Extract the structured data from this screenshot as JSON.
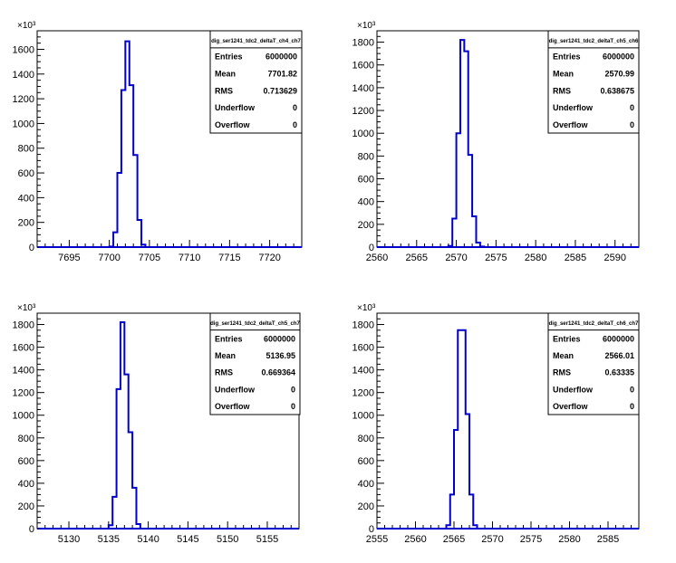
{
  "colors": {
    "histogram": "#0000cc",
    "axis": "#000000",
    "background": "#ffffff"
  },
  "chart_data": [
    {
      "type": "histogram",
      "title": "dig_ser1241_tdc2_deltaT_ch4_ch7",
      "xlim": [
        7691,
        7724
      ],
      "ylim": [
        0,
        1750
      ],
      "y_exponent_label": "×10³",
      "x_ticks": [
        7695,
        7700,
        7705,
        7710,
        7715,
        7720
      ],
      "y_ticks": [
        0,
        200,
        400,
        600,
        800,
        1000,
        1200,
        1400,
        1600
      ],
      "bin_width": 0.5,
      "bins": [
        {
          "x": 7700.0,
          "y": 5
        },
        {
          "x": 7700.5,
          "y": 120
        },
        {
          "x": 7701.0,
          "y": 600
        },
        {
          "x": 7701.5,
          "y": 1270
        },
        {
          "x": 7702.0,
          "y": 1665
        },
        {
          "x": 7702.5,
          "y": 1310
        },
        {
          "x": 7703.0,
          "y": 745
        },
        {
          "x": 7703.5,
          "y": 220
        },
        {
          "x": 7704.0,
          "y": 20
        }
      ],
      "stats": {
        "name": "dig_ser1241_tdc2_deltaT_ch4_ch7",
        "rows": [
          {
            "label": "Entries",
            "value": "6000000"
          },
          {
            "label": "Mean",
            "value": "7701.82"
          },
          {
            "label": "RMS",
            "value": "0.713629"
          },
          {
            "label": "Underflow",
            "value": "0"
          },
          {
            "label": "Overflow",
            "value": "0"
          }
        ]
      }
    },
    {
      "type": "histogram",
      "title": "dig_ser1241_tdc2_deltaT_ch5_ch6",
      "xlim": [
        2560,
        2593
      ],
      "ylim": [
        0,
        1900
      ],
      "y_exponent_label": "×10³",
      "x_ticks": [
        2560,
        2565,
        2570,
        2575,
        2580,
        2585,
        2590
      ],
      "y_ticks": [
        0,
        200,
        400,
        600,
        800,
        1000,
        1200,
        1400,
        1600,
        1800
      ],
      "bin_width": 0.5,
      "bins": [
        {
          "x": 2569.0,
          "y": 10
        },
        {
          "x": 2569.5,
          "y": 250
        },
        {
          "x": 2570.0,
          "y": 1000
        },
        {
          "x": 2570.5,
          "y": 1820
        },
        {
          "x": 2571.0,
          "y": 1720
        },
        {
          "x": 2571.5,
          "y": 810
        },
        {
          "x": 2572.0,
          "y": 270
        },
        {
          "x": 2572.5,
          "y": 40
        },
        {
          "x": 2573.0,
          "y": 5
        }
      ],
      "stats": {
        "name": "dig_ser1241_tdc2_deltaT_ch5_ch6",
        "rows": [
          {
            "label": "Entries",
            "value": "6000000"
          },
          {
            "label": "Mean",
            "value": "2570.99"
          },
          {
            "label": "RMS",
            "value": "0.638675"
          },
          {
            "label": "Underflow",
            "value": "0"
          },
          {
            "label": "Overflow",
            "value": "0"
          }
        ]
      }
    },
    {
      "type": "histogram",
      "title": "dig_ser1241_tdc2_deltaT_ch5_ch7",
      "xlim": [
        5126,
        5159
      ],
      "ylim": [
        0,
        1900
      ],
      "y_exponent_label": "×10³",
      "x_ticks": [
        5130,
        5135,
        5140,
        5145,
        5150,
        5155
      ],
      "y_ticks": [
        0,
        200,
        400,
        600,
        800,
        1000,
        1200,
        1400,
        1600,
        1800
      ],
      "bin_width": 0.5,
      "bins": [
        {
          "x": 5135.0,
          "y": 30
        },
        {
          "x": 5135.5,
          "y": 280
        },
        {
          "x": 5136.0,
          "y": 1230
        },
        {
          "x": 5136.5,
          "y": 1820
        },
        {
          "x": 5137.0,
          "y": 1360
        },
        {
          "x": 5137.5,
          "y": 850
        },
        {
          "x": 5138.0,
          "y": 360
        },
        {
          "x": 5138.5,
          "y": 40
        }
      ],
      "stats": {
        "name": "dig_ser1241_tdc2_deltaT_ch5_ch7",
        "rows": [
          {
            "label": "Entries",
            "value": "6000000"
          },
          {
            "label": "Mean",
            "value": "5136.95"
          },
          {
            "label": "RMS",
            "value": "0.669364"
          },
          {
            "label": "Underflow",
            "value": "0"
          },
          {
            "label": "Overflow",
            "value": "0"
          }
        ]
      }
    },
    {
      "type": "histogram",
      "title": "dig_ser1241_tdc2_deltaT_ch6_ch7",
      "xlim": [
        2555,
        2589
      ],
      "ylim": [
        0,
        1900
      ],
      "y_exponent_label": "×10³",
      "x_ticks": [
        2555,
        2560,
        2565,
        2570,
        2575,
        2580,
        2585
      ],
      "y_ticks": [
        0,
        200,
        400,
        600,
        800,
        1000,
        1200,
        1400,
        1600,
        1800
      ],
      "bin_width": 0.5,
      "bins": [
        {
          "x": 2564.0,
          "y": 30
        },
        {
          "x": 2564.5,
          "y": 300
        },
        {
          "x": 2565.0,
          "y": 870
        },
        {
          "x": 2565.5,
          "y": 1750
        },
        {
          "x": 2566.0,
          "y": 1750
        },
        {
          "x": 2566.5,
          "y": 1010
        },
        {
          "x": 2567.0,
          "y": 300
        },
        {
          "x": 2567.5,
          "y": 30
        }
      ],
      "stats": {
        "name": "dig_ser1241_tdc2_deltaT_ch6_ch7",
        "rows": [
          {
            "label": "Entries",
            "value": "6000000"
          },
          {
            "label": "Mean",
            "value": "2566.01"
          },
          {
            "label": "RMS",
            "value": "0.63335"
          },
          {
            "label": "Underflow",
            "value": "0"
          },
          {
            "label": "Overflow",
            "value": "0"
          }
        ]
      }
    }
  ]
}
